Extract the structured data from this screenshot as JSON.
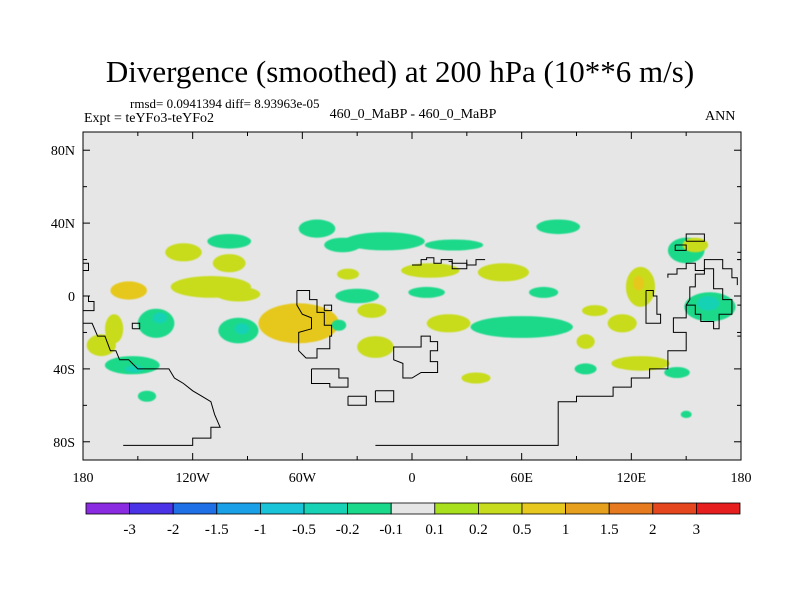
{
  "chart_data": {
    "type": "heatmap",
    "title": "Divergence (smoothed) at 200 hPa (10**6 m/s)",
    "stats_line": "rmsd= 0.0941394  diff= 8.93963e-05",
    "left_label": "Expt = teYFo3-teYFo2",
    "center_label": "460_0_MaBP - 460_0_MaBP",
    "right_label": "ANN",
    "rmsd": 0.0941394,
    "diff": 8.93963e-05,
    "units": "10**6 m/s",
    "xlim": [
      -180,
      180
    ],
    "ylim": [
      -90,
      90
    ],
    "x_ticks": [
      {
        "value": -180,
        "label": "180"
      },
      {
        "value": -120,
        "label": "120W"
      },
      {
        "value": -60,
        "label": "60W"
      },
      {
        "value": 0,
        "label": "0"
      },
      {
        "value": 60,
        "label": "60E"
      },
      {
        "value": 120,
        "label": "120E"
      },
      {
        "value": 180,
        "label": "180"
      }
    ],
    "y_ticks": [
      {
        "value": 80,
        "label": "80N"
      },
      {
        "value": 40,
        "label": "40N"
      },
      {
        "value": 0,
        "label": "0"
      },
      {
        "value": -40,
        "label": "40S"
      },
      {
        "value": -80,
        "label": "80S"
      }
    ],
    "colorbar": {
      "levels": [
        "-3",
        "-2",
        "-1.5",
        "-1",
        "-0.5",
        "-0.2",
        "-0.1",
        "0.1",
        "0.2",
        "0.5",
        "1",
        "1.5",
        "2",
        "3"
      ],
      "colors": [
        "#8a2be2",
        "#4a32e6",
        "#1f6fe6",
        "#1aa0e6",
        "#19c4d9",
        "#17d2b4",
        "#1bd98a",
        "#e6e6e6",
        "#a8e01e",
        "#c8dc1e",
        "#e6c81e",
        "#e6a01e",
        "#e67a1e",
        "#e6461e",
        "#e61e1e"
      ]
    },
    "background_color": "#e6e6e6",
    "features": [
      {
        "lon": -155,
        "lat": 3,
        "rx": 10,
        "ry": 5,
        "value": 0.5
      },
      {
        "lon": -110,
        "lat": 5,
        "rx": 22,
        "ry": 6,
        "value": 0.3
      },
      {
        "lon": -95,
        "lat": 1,
        "rx": 12,
        "ry": 4,
        "value": 0.3
      },
      {
        "lon": -62,
        "lat": -15,
        "rx": 22,
        "ry": 11,
        "value": 0.5
      },
      {
        "lon": -53,
        "lat": -20,
        "rx": 8,
        "ry": 4,
        "value": 0.7
      },
      {
        "lon": -125,
        "lat": 24,
        "rx": 10,
        "ry": 5,
        "value": 0.3
      },
      {
        "lon": -100,
        "lat": 18,
        "rx": 9,
        "ry": 5,
        "value": 0.3
      },
      {
        "lon": -163,
        "lat": -18,
        "rx": 5,
        "ry": 8,
        "value": 0.3
      },
      {
        "lon": -153,
        "lat": -38,
        "rx": 15,
        "ry": 5,
        "value": -0.2
      },
      {
        "lon": -152,
        "lat": -40,
        "rx": 5,
        "ry": 2,
        "value": -0.5
      },
      {
        "lon": -140,
        "lat": -15,
        "rx": 10,
        "ry": 8,
        "value": -0.2
      },
      {
        "lon": -138,
        "lat": -12,
        "rx": 4,
        "ry": 3,
        "value": -0.5
      },
      {
        "lon": -95,
        "lat": -19,
        "rx": 11,
        "ry": 7,
        "value": -0.2
      },
      {
        "lon": -93,
        "lat": -18,
        "rx": 4,
        "ry": 3,
        "value": -0.5
      },
      {
        "lon": -145,
        "lat": -55,
        "rx": 5,
        "ry": 3,
        "value": -0.2
      },
      {
        "lon": -100,
        "lat": 30,
        "rx": 12,
        "ry": 4,
        "value": -0.2
      },
      {
        "lon": -52,
        "lat": 37,
        "rx": 10,
        "ry": 5,
        "value": -0.2
      },
      {
        "lon": -38,
        "lat": 28,
        "rx": 10,
        "ry": 4,
        "value": -0.2
      },
      {
        "lon": -15,
        "lat": 30,
        "rx": 22,
        "ry": 5,
        "value": -0.2
      },
      {
        "lon": 23,
        "lat": 28,
        "rx": 16,
        "ry": 3,
        "value": -0.2
      },
      {
        "lon": -30,
        "lat": 0,
        "rx": 12,
        "ry": 4,
        "value": -0.2
      },
      {
        "lon": -40,
        "lat": -16,
        "rx": 4,
        "ry": 3,
        "value": -0.2
      },
      {
        "lon": 8,
        "lat": 2,
        "rx": 10,
        "ry": 3,
        "value": -0.2
      },
      {
        "lon": 72,
        "lat": 2,
        "rx": 8,
        "ry": 3,
        "value": -0.2
      },
      {
        "lon": 60,
        "lat": -17,
        "rx": 28,
        "ry": 6,
        "value": -0.2
      },
      {
        "lon": 80,
        "lat": 38,
        "rx": 12,
        "ry": 4,
        "value": -0.2
      },
      {
        "lon": 150,
        "lat": 25,
        "rx": 10,
        "ry": 7,
        "value": -0.2
      },
      {
        "lon": 163,
        "lat": -6,
        "rx": 14,
        "ry": 8,
        "value": -0.2
      },
      {
        "lon": 162,
        "lat": -4,
        "rx": 6,
        "ry": 4,
        "value": -0.5
      },
      {
        "lon": 145,
        "lat": -42,
        "rx": 7,
        "ry": 3,
        "value": -0.2
      },
      {
        "lon": 150,
        "lat": -65,
        "rx": 3,
        "ry": 2,
        "value": -0.2
      },
      {
        "lon": 95,
        "lat": -40,
        "rx": 6,
        "ry": 3,
        "value": -0.2
      },
      {
        "lon": 35,
        "lat": -45,
        "rx": 8,
        "ry": 3,
        "value": 0.3
      },
      {
        "lon": -20,
        "lat": -28,
        "rx": 10,
        "ry": 6,
        "value": 0.3
      },
      {
        "lon": -22,
        "lat": -8,
        "rx": 8,
        "ry": 4,
        "value": 0.3
      },
      {
        "lon": 20,
        "lat": -15,
        "rx": 12,
        "ry": 5,
        "value": 0.3
      },
      {
        "lon": 10,
        "lat": 14,
        "rx": 16,
        "ry": 4,
        "value": 0.3
      },
      {
        "lon": 50,
        "lat": 13,
        "rx": 14,
        "ry": 5,
        "value": 0.3
      },
      {
        "lon": 115,
        "lat": -15,
        "rx": 8,
        "ry": 5,
        "value": 0.3
      },
      {
        "lon": 125,
        "lat": 5,
        "rx": 8,
        "ry": 11,
        "value": 0.3
      },
      {
        "lon": 124,
        "lat": 7,
        "rx": 3,
        "ry": 4,
        "value": 0.7
      },
      {
        "lon": 95,
        "lat": -25,
        "rx": 5,
        "ry": 4,
        "value": 0.3
      },
      {
        "lon": 125,
        "lat": -37,
        "rx": 16,
        "ry": 4,
        "value": 0.3
      },
      {
        "lon": 100,
        "lat": -8,
        "rx": 7,
        "ry": 3,
        "value": 0.3
      },
      {
        "lon": -170,
        "lat": -27,
        "rx": 8,
        "ry": 6,
        "value": 0.3
      },
      {
        "lon": -35,
        "lat": 12,
        "rx": 6,
        "ry": 3,
        "value": 0.3
      },
      {
        "lon": 155,
        "lat": 28,
        "rx": 7,
        "ry": 4,
        "value": 0.3
      }
    ],
    "coastlines": [
      [
        [
          -180,
          -15
        ],
        [
          -175,
          -15
        ],
        [
          -172,
          -22
        ],
        [
          -168,
          -22
        ],
        [
          -165,
          -30
        ],
        [
          -162,
          -30
        ],
        [
          -160,
          -35
        ],
        [
          -155,
          -35
        ],
        [
          -150,
          -40
        ],
        [
          -140,
          -40
        ],
        [
          -133,
          -40
        ],
        [
          -130,
          -45
        ],
        [
          -125,
          -48
        ],
        [
          -120,
          -52
        ],
        [
          -115,
          -55
        ],
        [
          -110,
          -58
        ],
        [
          -108,
          -65
        ],
        [
          -105,
          -72
        ],
        [
          -110,
          -72
        ],
        [
          -110,
          -78
        ],
        [
          -120,
          -78
        ],
        [
          -120,
          -82
        ],
        [
          -158,
          -82
        ]
      ],
      [
        [
          -153,
          -18
        ],
        [
          -149,
          -18
        ],
        [
          -149,
          -15
        ],
        [
          -153,
          -15
        ],
        [
          -153,
          -18
        ]
      ],
      [
        [
          -180,
          0
        ],
        [
          -177,
          0
        ],
        [
          -177,
          -3
        ],
        [
          -174,
          -3
        ],
        [
          -174,
          -8
        ],
        [
          -180,
          -8
        ]
      ],
      [
        [
          -180,
          18
        ],
        [
          -177,
          18
        ],
        [
          -177,
          14
        ],
        [
          -180,
          14
        ]
      ],
      [
        [
          -63,
          3
        ],
        [
          -56,
          3
        ],
        [
          -56,
          -2
        ],
        [
          -52,
          -2
        ],
        [
          -52,
          -9
        ],
        [
          -48,
          -9
        ],
        [
          -48,
          -16
        ],
        [
          -44,
          -16
        ],
        [
          -44,
          -22
        ],
        [
          -45,
          -22
        ],
        [
          -45,
          -29
        ],
        [
          -52,
          -29
        ],
        [
          -52,
          -34
        ],
        [
          -58,
          -34
        ],
        [
          -62,
          -30
        ],
        [
          -62,
          -20
        ],
        [
          -55,
          -18
        ],
        [
          -55,
          -12
        ],
        [
          -60,
          -10
        ],
        [
          -63,
          -5
        ],
        [
          -63,
          3
        ]
      ],
      [
        [
          -48,
          -8
        ],
        [
          -44,
          -8
        ],
        [
          -44,
          -5
        ],
        [
          -48,
          -5
        ],
        [
          -48,
          -8
        ]
      ],
      [
        [
          -55,
          -40
        ],
        [
          -40,
          -40
        ],
        [
          -40,
          -45
        ],
        [
          -35,
          -45
        ],
        [
          -35,
          -50
        ],
        [
          -45,
          -50
        ],
        [
          -45,
          -48
        ],
        [
          -55,
          -48
        ],
        [
          -55,
          -40
        ]
      ],
      [
        [
          -5,
          -28
        ],
        [
          5,
          -28
        ],
        [
          5,
          -22
        ],
        [
          10,
          -22
        ],
        [
          10,
          -25
        ],
        [
          14,
          -25
        ],
        [
          14,
          -30
        ],
        [
          10,
          -30
        ],
        [
          10,
          -36
        ],
        [
          14,
          -36
        ],
        [
          14,
          -42
        ],
        [
          5,
          -42
        ],
        [
          0,
          -45
        ],
        [
          -5,
          -45
        ],
        [
          -5,
          -37
        ],
        [
          -10,
          -35
        ],
        [
          -10,
          -28
        ],
        [
          -5,
          -28
        ]
      ],
      [
        [
          -20,
          -52
        ],
        [
          -10,
          -52
        ],
        [
          -10,
          -58
        ],
        [
          -20,
          -58
        ],
        [
          -20,
          -52
        ]
      ],
      [
        [
          -35,
          -55
        ],
        [
          -25,
          -55
        ],
        [
          -25,
          -60
        ],
        [
          -35,
          -60
        ],
        [
          -35,
          -55
        ]
      ],
      [
        [
          0,
          17
        ],
        [
          5,
          17
        ],
        [
          5,
          20
        ],
        [
          8,
          20
        ],
        [
          8,
          21
        ],
        [
          12,
          21
        ],
        [
          12,
          18
        ],
        [
          16,
          18
        ],
        [
          16,
          20
        ],
        [
          22,
          20
        ],
        [
          22,
          18
        ],
        [
          30,
          18
        ],
        [
          30,
          17
        ],
        [
          35,
          17
        ],
        [
          35,
          20
        ],
        [
          40,
          20
        ]
      ],
      [
        [
          20,
          19
        ],
        [
          22,
          19
        ],
        [
          22,
          15
        ],
        [
          30,
          15
        ],
        [
          30,
          20
        ]
      ],
      [
        [
          128,
          3
        ],
        [
          132,
          3
        ],
        [
          132,
          0
        ],
        [
          134,
          0
        ],
        [
          134,
          -10
        ],
        [
          136,
          -10
        ],
        [
          136,
          -15
        ],
        [
          128,
          -15
        ],
        [
          128,
          -5
        ],
        [
          128,
          3
        ]
      ],
      [
        [
          150,
          -5
        ],
        [
          150,
          -12
        ],
        [
          143,
          -12
        ],
        [
          143,
          -20
        ],
        [
          150,
          -20
        ],
        [
          150,
          -30
        ],
        [
          140,
          -30
        ],
        [
          140,
          -40
        ],
        [
          130,
          -40
        ],
        [
          130,
          -45
        ],
        [
          120,
          -45
        ],
        [
          120,
          -50
        ],
        [
          110,
          -50
        ],
        [
          110,
          -55
        ],
        [
          90,
          -55
        ],
        [
          90,
          -58
        ],
        [
          80,
          -58
        ],
        [
          80,
          -82
        ],
        [
          -20,
          -82
        ]
      ],
      [
        [
          150,
          -5
        ],
        [
          155,
          -5
        ],
        [
          155,
          -10
        ],
        [
          158,
          -10
        ],
        [
          158,
          -14
        ],
        [
          165,
          -14
        ],
        [
          165,
          -18
        ],
        [
          168,
          -18
        ],
        [
          168,
          -10
        ],
        [
          175,
          -10
        ],
        [
          175,
          -2
        ],
        [
          170,
          -2
        ],
        [
          170,
          4
        ],
        [
          165,
          4
        ],
        [
          165,
          15
        ],
        [
          160,
          15
        ],
        [
          160,
          12
        ],
        [
          155,
          12
        ],
        [
          155,
          5
        ],
        [
          152,
          5
        ],
        [
          152,
          -2
        ],
        [
          150,
          -5
        ]
      ],
      [
        [
          140,
          10
        ],
        [
          140,
          12
        ],
        [
          145,
          12
        ],
        [
          145,
          15
        ],
        [
          150,
          15
        ],
        [
          150,
          18
        ],
        [
          155,
          18
        ],
        [
          155,
          14
        ],
        [
          160,
          14
        ],
        [
          160,
          20
        ],
        [
          170,
          20
        ],
        [
          170,
          15
        ],
        [
          175,
          15
        ],
        [
          175,
          10
        ],
        [
          178,
          10
        ],
        [
          178,
          6
        ]
      ],
      [
        [
          144,
          28
        ],
        [
          144,
          25
        ],
        [
          150,
          25
        ],
        [
          150,
          28
        ],
        [
          144,
          28
        ]
      ],
      [
        [
          150,
          30
        ],
        [
          160,
          30
        ],
        [
          160,
          34
        ],
        [
          150,
          34
        ],
        [
          150,
          30
        ]
      ],
      [
        [
          178,
          20
        ],
        [
          180,
          20
        ]
      ],
      [
        [
          178,
          24
        ],
        [
          180,
          24
        ]
      ],
      [
        [
          178,
          -5
        ],
        [
          180,
          -5
        ]
      ],
      [
        [
          178,
          -22
        ],
        [
          180,
          -22
        ]
      ]
    ]
  }
}
